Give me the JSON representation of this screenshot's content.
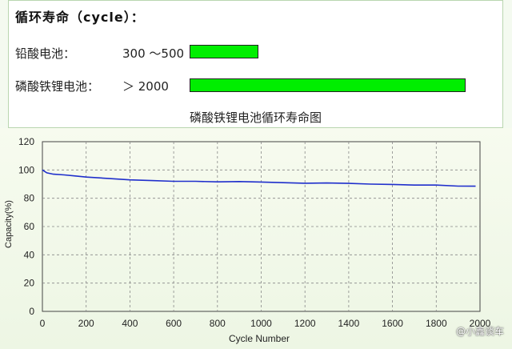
{
  "top": {
    "heading": "循环寿命（cycle）：",
    "rows": [
      {
        "label": "铅酸电池：",
        "value": "300 ～500",
        "cycles": 500
      },
      {
        "label": "磷酸铁锂电池：",
        "value": "＞ 2000",
        "cycles": 2000
      }
    ],
    "bar_color": "#00ee00",
    "caption": "磷酸铁锂电池循环寿命图"
  },
  "watermark": "@小鑫谈车",
  "chart_data": {
    "type": "line",
    "xlabel": "Cycle Number",
    "ylabel": "Capacity(%)",
    "xlim": [
      0,
      2000
    ],
    "ylim": [
      0,
      120
    ],
    "xticks": [
      "0",
      "200",
      "400",
      "600",
      "800",
      "1000",
      "1200",
      "1400",
      "1600",
      "1800",
      "2000"
    ],
    "yticks": [
      "0",
      "20",
      "40",
      "60",
      "80",
      "100",
      "120"
    ],
    "grid": "dashed",
    "line_color": "#1f2fcc",
    "series": [
      {
        "x": [
          0,
          20,
          50,
          100,
          150,
          200,
          300,
          400,
          500,
          600,
          700,
          800,
          900,
          1000,
          1100,
          1200,
          1300,
          1400,
          1500,
          1600,
          1700,
          1800,
          1900,
          1980
        ],
        "values": [
          100,
          98,
          97,
          96.5,
          95.8,
          95,
          94,
          93,
          92.5,
          92,
          92,
          91.6,
          91.8,
          91.5,
          91,
          90.6,
          90.8,
          90.5,
          90,
          89.8,
          89.3,
          89.3,
          88.6,
          88.5
        ]
      }
    ]
  }
}
